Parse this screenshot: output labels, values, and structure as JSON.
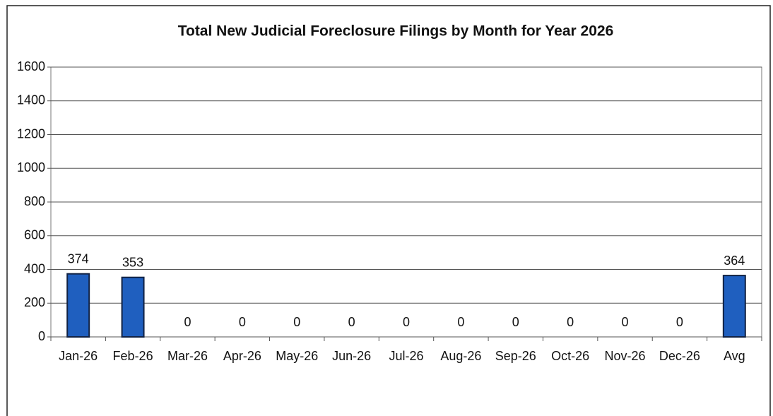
{
  "chart_data": {
    "type": "bar",
    "title": "Total New Judicial Foreclosure Filings by Month for Year 2026",
    "categories": [
      "Jan-26",
      "Feb-26",
      "Mar-26",
      "Apr-26",
      "May-26",
      "Jun-26",
      "Jul-26",
      "Aug-26",
      "Sep-26",
      "Oct-26",
      "Nov-26",
      "Dec-26",
      "Avg"
    ],
    "values": [
      374,
      353,
      0,
      0,
      0,
      0,
      0,
      0,
      0,
      0,
      0,
      0,
      364
    ],
    "color": "#1f5fbf",
    "ylim": [
      0,
      1600
    ],
    "yticks": [
      0,
      200,
      400,
      600,
      800,
      1000,
      1200,
      1400,
      1600
    ],
    "grid": true
  }
}
